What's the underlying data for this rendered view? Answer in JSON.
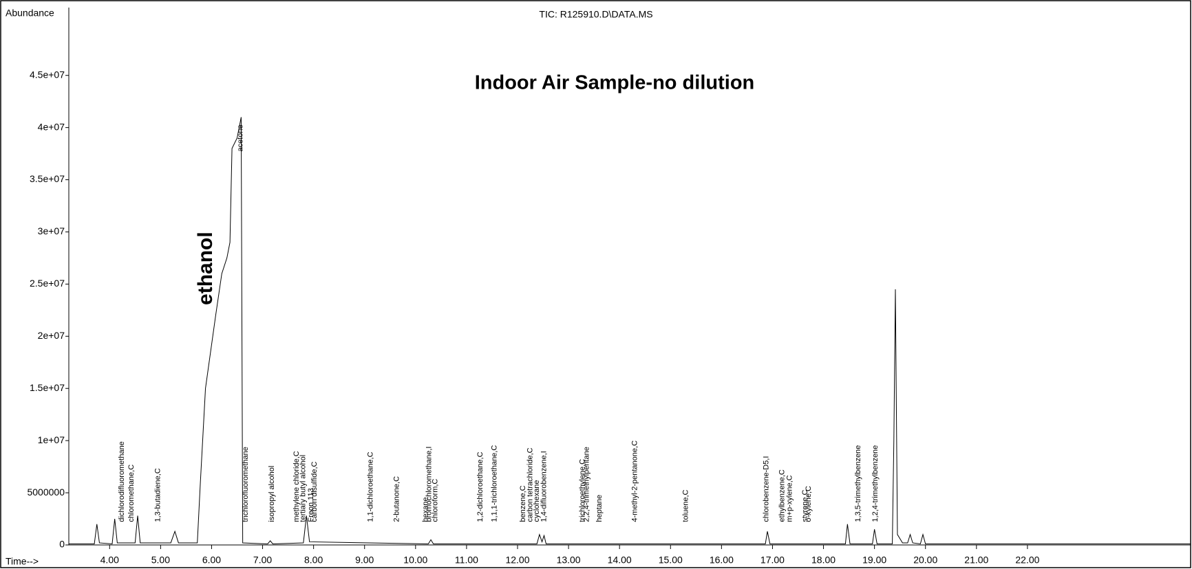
{
  "chart_data": {
    "type": "line",
    "title": "TIC: R125910.D\\DATA.MS",
    "subtitle": "Indoor Air Sample-no dilution",
    "ylabel": "Abundance",
    "xlabel": "Time-->",
    "line_color": "#000000",
    "subtitle_color": "#3a4fc0",
    "xlim": [
      3.2,
      25.2
    ],
    "ylim": [
      0,
      51500000
    ],
    "xticks": [
      {
        "value": 4,
        "label": "4.00"
      },
      {
        "value": 5,
        "label": "5.00"
      },
      {
        "value": 6,
        "label": "6.00"
      },
      {
        "value": 7,
        "label": "7.00"
      },
      {
        "value": 8,
        "label": "8.00"
      },
      {
        "value": 9,
        "label": "9.00"
      },
      {
        "value": 10,
        "label": "10.00"
      },
      {
        "value": 11,
        "label": "11.00"
      },
      {
        "value": 12,
        "label": "12.00"
      },
      {
        "value": 13,
        "label": "13.00"
      },
      {
        "value": 14,
        "label": "14.00"
      },
      {
        "value": 15,
        "label": "15.00"
      },
      {
        "value": 16,
        "label": "16.00"
      },
      {
        "value": 17,
        "label": "17.00"
      },
      {
        "value": 18,
        "label": "18.00"
      },
      {
        "value": 19,
        "label": "19.00"
      },
      {
        "value": 20,
        "label": "20.00"
      },
      {
        "value": 21,
        "label": "21.00"
      },
      {
        "value": 22,
        "label": "22.00"
      }
    ],
    "yticks": [
      0,
      5000000,
      {
        "value": 10000000,
        "label": "1e+07"
      },
      {
        "value": 15000000,
        "label": "1.5e+07"
      },
      {
        "value": 20000000,
        "label": "2e+07"
      },
      {
        "value": 25000000,
        "label": "2.5e+07"
      },
      {
        "value": 30000000,
        "label": "3e+07"
      },
      {
        "value": 35000000,
        "label": "3.5e+07"
      },
      {
        "value": 40000000,
        "label": "4e+07"
      },
      {
        "value": 45000000,
        "label": "4.5e+07"
      }
    ],
    "x": [
      3.2,
      3.7,
      3.75,
      3.8,
      4.05,
      4.1,
      4.15,
      4.5,
      4.55,
      4.6,
      5.2,
      5.28,
      5.35,
      5.72,
      5.78,
      5.88,
      5.98,
      6.08,
      6.2,
      6.3,
      6.36,
      6.4,
      6.5,
      6.58,
      6.61,
      7.1,
      7.15,
      7.2,
      7.8,
      7.86,
      7.92,
      10.25,
      10.3,
      10.35,
      12.38,
      12.43,
      12.48,
      12.52,
      12.56,
      16.86,
      16.9,
      16.95,
      18.43,
      18.47,
      18.52,
      18.96,
      19.0,
      19.05,
      19.35,
      19.38,
      19.41,
      19.45,
      19.55,
      19.65,
      19.7,
      19.75,
      19.9,
      19.95,
      20.0,
      25.2
    ],
    "values": [
      100000,
      100000,
      2000000,
      200000,
      100000,
      2500000,
      200000,
      200000,
      2800000,
      200000,
      200000,
      1300000,
      200000,
      200000,
      6000000,
      15000000,
      18500000,
      22000000,
      26000000,
      27500000,
      29000000,
      38000000,
      39000000,
      41000000,
      200000,
      100000,
      400000,
      100000,
      200000,
      2800000,
      300000,
      100000,
      500000,
      100000,
      100000,
      1000000,
      300000,
      900000,
      100000,
      100000,
      1300000,
      100000,
      100000,
      2000000,
      100000,
      100000,
      1500000,
      100000,
      100000,
      10000000,
      24500000,
      1000000,
      200000,
      200000,
      1000000,
      200000,
      100000,
      1000000,
      100000,
      100000
    ],
    "annotations": [
      {
        "text": "ethanol",
        "x": 5.9,
        "y": 26500000
      },
      {
        "text": "dichlorodifluoromethane",
        "x": 4.24,
        "y": 2200000
      },
      {
        "text": "chloromethane,C",
        "x": 4.43,
        "y": 2200000
      },
      {
        "text": "1,3-butadiene,C",
        "x": 4.95,
        "y": 2200000
      },
      {
        "text": "acetone",
        "x": 6.57,
        "y": 37700000
      },
      {
        "text": "trichlorofluoromethane",
        "x": 6.67,
        "y": 2200000
      },
      {
        "text": "isopropyl alcohol",
        "x": 7.18,
        "y": 2200000
      },
      {
        "text": "methylene chloride,C",
        "x": 7.67,
        "y": 2200000
      },
      {
        "text": "tertiary butyl alcohol",
        "x": 7.8,
        "y": 2200000
      },
      {
        "text": "Freon 113",
        "x": 7.95,
        "y": 2200000
      },
      {
        "text": "carbon disulfide,C",
        "x": 8.02,
        "y": 2200000
      },
      {
        "text": "1,1-dichloroethane,C",
        "x": 9.12,
        "y": 2200000
      },
      {
        "text": "2-butanone,C",
        "x": 9.63,
        "y": 2200000
      },
      {
        "text": "hexane",
        "x": 10.2,
        "y": 2200000
      },
      {
        "text": "bromochloromethane,I",
        "x": 10.27,
        "y": 2200000
      },
      {
        "text": "chloroform,C",
        "x": 10.39,
        "y": 2200000
      },
      {
        "text": "1,2-dichloroethane,C",
        "x": 11.27,
        "y": 2200000
      },
      {
        "text": "1,1,1-trichloroethane,C",
        "x": 11.55,
        "y": 2200000
      },
      {
        "text": "benzene,C",
        "x": 12.11,
        "y": 2200000
      },
      {
        "text": "carbon tetrachloride,C",
        "x": 12.25,
        "y": 2200000
      },
      {
        "text": "cyclohexane",
        "x": 12.38,
        "y": 2200000
      },
      {
        "text": "1,4-difluorobenzene,I",
        "x": 12.52,
        "y": 2200000
      },
      {
        "text": "trichloroethylene,C",
        "x": 13.28,
        "y": 2200000
      },
      {
        "text": "2,2,4-trimethylpentane",
        "x": 13.36,
        "y": 2200000
      },
      {
        "text": "heptane",
        "x": 13.61,
        "y": 2200000
      },
      {
        "text": "4-methyl-2-pentanone,C",
        "x": 14.3,
        "y": 2200000
      },
      {
        "text": "toluene,C",
        "x": 15.3,
        "y": 2200000
      },
      {
        "text": "chlorobenzene-D5,I",
        "x": 16.88,
        "y": 2200000
      },
      {
        "text": "ethylbenzene,C",
        "x": 17.19,
        "y": 2200000
      },
      {
        "text": "m+p-xylene,C",
        "x": 17.34,
        "y": 2200000
      },
      {
        "text": "styrene,C",
        "x": 17.64,
        "y": 2200000
      },
      {
        "text": "o-xylene,C",
        "x": 17.71,
        "y": 2200000
      },
      {
        "text": "1,3,5-trimethylbenzene",
        "x": 18.68,
        "y": 2200000
      },
      {
        "text": "1,2,4-trimethylbenzene",
        "x": 19.02,
        "y": 2200000
      }
    ]
  }
}
